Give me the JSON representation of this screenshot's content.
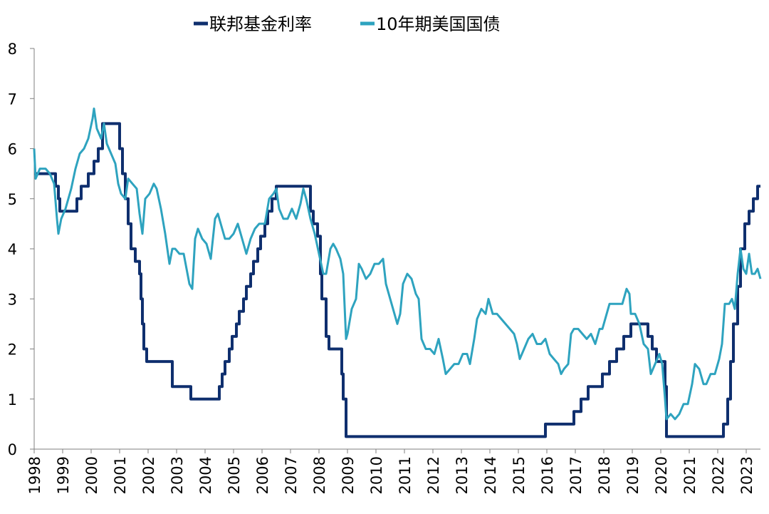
{
  "chart_data": {
    "type": "line",
    "title": "",
    "xlabel": "",
    "ylabel": "",
    "xlim": [
      1998.0,
      2023.5
    ],
    "ylim": [
      0,
      8
    ],
    "grid": false,
    "legend_position": "top-center",
    "x_ticks": [
      "1998",
      "1999",
      "2000",
      "2001",
      "2002",
      "2003",
      "2004",
      "2005",
      "2006",
      "2007",
      "2008",
      "2009",
      "2010",
      "2011",
      "2012",
      "2013",
      "2014",
      "2015",
      "2016",
      "2017",
      "2018",
      "2019",
      "2020",
      "2021",
      "2022",
      "2023"
    ],
    "y_ticks": [
      "0",
      "1",
      "2",
      "3",
      "4",
      "5",
      "6",
      "7",
      "8"
    ],
    "series": [
      {
        "name": "联邦基金利率",
        "color": "#0f2f6e",
        "step": true,
        "points": [
          [
            1998.0,
            5.5
          ],
          [
            1998.75,
            5.25
          ],
          [
            1998.85,
            5.0
          ],
          [
            1998.9,
            4.75
          ],
          [
            1999.5,
            5.0
          ],
          [
            1999.65,
            5.25
          ],
          [
            1999.9,
            5.5
          ],
          [
            2000.1,
            5.75
          ],
          [
            2000.25,
            6.0
          ],
          [
            2000.4,
            6.5
          ],
          [
            2001.0,
            6.0
          ],
          [
            2001.1,
            5.5
          ],
          [
            2001.2,
            5.0
          ],
          [
            2001.3,
            4.5
          ],
          [
            2001.4,
            4.0
          ],
          [
            2001.55,
            3.75
          ],
          [
            2001.7,
            3.5
          ],
          [
            2001.75,
            3.0
          ],
          [
            2001.8,
            2.5
          ],
          [
            2001.85,
            2.0
          ],
          [
            2001.95,
            1.75
          ],
          [
            2002.85,
            1.25
          ],
          [
            2003.5,
            1.0
          ],
          [
            2004.5,
            1.25
          ],
          [
            2004.6,
            1.5
          ],
          [
            2004.7,
            1.75
          ],
          [
            2004.85,
            2.0
          ],
          [
            2004.95,
            2.25
          ],
          [
            2005.1,
            2.5
          ],
          [
            2005.2,
            2.75
          ],
          [
            2005.35,
            3.0
          ],
          [
            2005.45,
            3.25
          ],
          [
            2005.6,
            3.5
          ],
          [
            2005.7,
            3.75
          ],
          [
            2005.85,
            4.0
          ],
          [
            2005.95,
            4.25
          ],
          [
            2006.1,
            4.5
          ],
          [
            2006.2,
            4.75
          ],
          [
            2006.35,
            5.0
          ],
          [
            2006.5,
            5.25
          ],
          [
            2007.7,
            4.75
          ],
          [
            2007.8,
            4.5
          ],
          [
            2007.95,
            4.25
          ],
          [
            2008.05,
            3.5
          ],
          [
            2008.1,
            3.0
          ],
          [
            2008.25,
            2.25
          ],
          [
            2008.35,
            2.0
          ],
          [
            2008.8,
            1.5
          ],
          [
            2008.85,
            1.0
          ],
          [
            2008.95,
            0.25
          ],
          [
            2015.95,
            0.5
          ],
          [
            2016.95,
            0.75
          ],
          [
            2017.2,
            1.0
          ],
          [
            2017.45,
            1.25
          ],
          [
            2017.95,
            1.5
          ],
          [
            2018.2,
            1.75
          ],
          [
            2018.45,
            2.0
          ],
          [
            2018.7,
            2.25
          ],
          [
            2018.95,
            2.5
          ],
          [
            2019.55,
            2.25
          ],
          [
            2019.7,
            2.0
          ],
          [
            2019.85,
            1.75
          ],
          [
            2020.15,
            1.25
          ],
          [
            2020.2,
            0.25
          ],
          [
            2022.2,
            0.5
          ],
          [
            2022.35,
            1.0
          ],
          [
            2022.45,
            1.75
          ],
          [
            2022.55,
            2.5
          ],
          [
            2022.7,
            3.25
          ],
          [
            2022.8,
            4.0
          ],
          [
            2022.95,
            4.5
          ],
          [
            2023.1,
            4.75
          ],
          [
            2023.25,
            5.0
          ],
          [
            2023.4,
            5.25
          ],
          [
            2023.5,
            5.25
          ]
        ]
      },
      {
        "name": "10年期美国国债",
        "color": "#2ea3bf",
        "step": false,
        "points": [
          [
            1998.0,
            6.0
          ],
          [
            1998.05,
            5.4
          ],
          [
            1998.2,
            5.6
          ],
          [
            1998.4,
            5.6
          ],
          [
            1998.55,
            5.5
          ],
          [
            1998.7,
            5.3
          ],
          [
            1998.8,
            4.6
          ],
          [
            1998.85,
            4.3
          ],
          [
            1998.95,
            4.6
          ],
          [
            1999.1,
            4.8
          ],
          [
            1999.3,
            5.2
          ],
          [
            1999.45,
            5.6
          ],
          [
            1999.6,
            5.9
          ],
          [
            1999.75,
            6.0
          ],
          [
            1999.9,
            6.2
          ],
          [
            2000.05,
            6.6
          ],
          [
            2000.1,
            6.8
          ],
          [
            2000.2,
            6.4
          ],
          [
            2000.35,
            6.2
          ],
          [
            2000.45,
            6.5
          ],
          [
            2000.55,
            6.1
          ],
          [
            2000.7,
            5.9
          ],
          [
            2000.85,
            5.7
          ],
          [
            2000.95,
            5.3
          ],
          [
            2001.05,
            5.1
          ],
          [
            2001.2,
            5.0
          ],
          [
            2001.3,
            5.4
          ],
          [
            2001.45,
            5.3
          ],
          [
            2001.6,
            5.2
          ],
          [
            2001.7,
            4.7
          ],
          [
            2001.8,
            4.3
          ],
          [
            2001.9,
            5.0
          ],
          [
            2002.05,
            5.1
          ],
          [
            2002.2,
            5.3
          ],
          [
            2002.3,
            5.2
          ],
          [
            2002.45,
            4.8
          ],
          [
            2002.6,
            4.3
          ],
          [
            2002.75,
            3.7
          ],
          [
            2002.85,
            4.0
          ],
          [
            2002.95,
            4.0
          ],
          [
            2003.1,
            3.9
          ],
          [
            2003.25,
            3.9
          ],
          [
            2003.45,
            3.3
          ],
          [
            2003.55,
            3.2
          ],
          [
            2003.65,
            4.2
          ],
          [
            2003.75,
            4.4
          ],
          [
            2003.9,
            4.2
          ],
          [
            2004.05,
            4.1
          ],
          [
            2004.2,
            3.8
          ],
          [
            2004.35,
            4.6
          ],
          [
            2004.45,
            4.7
          ],
          [
            2004.55,
            4.5
          ],
          [
            2004.7,
            4.2
          ],
          [
            2004.85,
            4.2
          ],
          [
            2005.0,
            4.3
          ],
          [
            2005.15,
            4.5
          ],
          [
            2005.3,
            4.2
          ],
          [
            2005.45,
            3.9
          ],
          [
            2005.6,
            4.2
          ],
          [
            2005.75,
            4.4
          ],
          [
            2005.9,
            4.5
          ],
          [
            2006.1,
            4.5
          ],
          [
            2006.25,
            5.0
          ],
          [
            2006.4,
            5.1
          ],
          [
            2006.5,
            5.2
          ],
          [
            2006.6,
            4.8
          ],
          [
            2006.75,
            4.6
          ],
          [
            2006.9,
            4.6
          ],
          [
            2007.05,
            4.8
          ],
          [
            2007.2,
            4.6
          ],
          [
            2007.35,
            4.9
          ],
          [
            2007.45,
            5.2
          ],
          [
            2007.55,
            5.0
          ],
          [
            2007.7,
            4.6
          ],
          [
            2007.85,
            4.3
          ],
          [
            2008.0,
            3.9
          ],
          [
            2008.15,
            3.5
          ],
          [
            2008.25,
            3.5
          ],
          [
            2008.4,
            4.0
          ],
          [
            2008.5,
            4.1
          ],
          [
            2008.6,
            4.0
          ],
          [
            2008.75,
            3.8
          ],
          [
            2008.85,
            3.5
          ],
          [
            2008.95,
            2.2
          ],
          [
            2009.0,
            2.3
          ],
          [
            2009.15,
            2.8
          ],
          [
            2009.3,
            3.0
          ],
          [
            2009.4,
            3.7
          ],
          [
            2009.5,
            3.6
          ],
          [
            2009.65,
            3.4
          ],
          [
            2009.8,
            3.5
          ],
          [
            2009.95,
            3.7
          ],
          [
            2010.1,
            3.7
          ],
          [
            2010.25,
            3.8
          ],
          [
            2010.35,
            3.3
          ],
          [
            2010.5,
            3.0
          ],
          [
            2010.6,
            2.8
          ],
          [
            2010.75,
            2.5
          ],
          [
            2010.85,
            2.7
          ],
          [
            2010.95,
            3.3
          ],
          [
            2011.1,
            3.5
          ],
          [
            2011.25,
            3.4
          ],
          [
            2011.4,
            3.1
          ],
          [
            2011.5,
            3.0
          ],
          [
            2011.6,
            2.2
          ],
          [
            2011.75,
            2.0
          ],
          [
            2011.9,
            2.0
          ],
          [
            2012.05,
            1.9
          ],
          [
            2012.2,
            2.2
          ],
          [
            2012.35,
            1.8
          ],
          [
            2012.45,
            1.5
          ],
          [
            2012.6,
            1.6
          ],
          [
            2012.75,
            1.7
          ],
          [
            2012.9,
            1.7
          ],
          [
            2013.05,
            1.9
          ],
          [
            2013.2,
            1.9
          ],
          [
            2013.3,
            1.7
          ],
          [
            2013.45,
            2.2
          ],
          [
            2013.55,
            2.6
          ],
          [
            2013.7,
            2.8
          ],
          [
            2013.85,
            2.7
          ],
          [
            2013.95,
            3.0
          ],
          [
            2014.1,
            2.7
          ],
          [
            2014.25,
            2.7
          ],
          [
            2014.4,
            2.6
          ],
          [
            2014.55,
            2.5
          ],
          [
            2014.7,
            2.4
          ],
          [
            2014.85,
            2.3
          ],
          [
            2014.95,
            2.1
          ],
          [
            2015.05,
            1.8
          ],
          [
            2015.2,
            2.0
          ],
          [
            2015.35,
            2.2
          ],
          [
            2015.5,
            2.3
          ],
          [
            2015.65,
            2.1
          ],
          [
            2015.8,
            2.1
          ],
          [
            2015.95,
            2.2
          ],
          [
            2016.1,
            1.9
          ],
          [
            2016.25,
            1.8
          ],
          [
            2016.4,
            1.7
          ],
          [
            2016.5,
            1.5
          ],
          [
            2016.6,
            1.6
          ],
          [
            2016.75,
            1.7
          ],
          [
            2016.85,
            2.3
          ],
          [
            2016.95,
            2.4
          ],
          [
            2017.1,
            2.4
          ],
          [
            2017.25,
            2.3
          ],
          [
            2017.4,
            2.2
          ],
          [
            2017.55,
            2.3
          ],
          [
            2017.7,
            2.1
          ],
          [
            2017.85,
            2.4
          ],
          [
            2017.95,
            2.4
          ],
          [
            2018.1,
            2.7
          ],
          [
            2018.2,
            2.9
          ],
          [
            2018.35,
            2.9
          ],
          [
            2018.5,
            2.9
          ],
          [
            2018.65,
            2.9
          ],
          [
            2018.8,
            3.2
          ],
          [
            2018.9,
            3.1
          ],
          [
            2018.95,
            2.7
          ],
          [
            2019.1,
            2.7
          ],
          [
            2019.25,
            2.5
          ],
          [
            2019.4,
            2.1
          ],
          [
            2019.55,
            2.0
          ],
          [
            2019.65,
            1.5
          ],
          [
            2019.8,
            1.7
          ],
          [
            2019.95,
            1.9
          ],
          [
            2020.05,
            1.7
          ],
          [
            2020.15,
            1.0
          ],
          [
            2020.2,
            0.6
          ],
          [
            2020.35,
            0.7
          ],
          [
            2020.5,
            0.6
          ],
          [
            2020.65,
            0.7
          ],
          [
            2020.8,
            0.9
          ],
          [
            2020.95,
            0.9
          ],
          [
            2021.1,
            1.3
          ],
          [
            2021.2,
            1.7
          ],
          [
            2021.35,
            1.6
          ],
          [
            2021.5,
            1.3
          ],
          [
            2021.6,
            1.3
          ],
          [
            2021.75,
            1.5
          ],
          [
            2021.9,
            1.5
          ],
          [
            2022.05,
            1.8
          ],
          [
            2022.15,
            2.1
          ],
          [
            2022.25,
            2.9
          ],
          [
            2022.4,
            2.9
          ],
          [
            2022.5,
            3.0
          ],
          [
            2022.6,
            2.8
          ],
          [
            2022.7,
            3.5
          ],
          [
            2022.8,
            4.0
          ],
          [
            2022.9,
            3.6
          ],
          [
            2023.0,
            3.5
          ],
          [
            2023.1,
            3.9
          ],
          [
            2023.2,
            3.5
          ],
          [
            2023.3,
            3.5
          ],
          [
            2023.4,
            3.6
          ],
          [
            2023.5,
            3.4
          ]
        ]
      }
    ]
  }
}
